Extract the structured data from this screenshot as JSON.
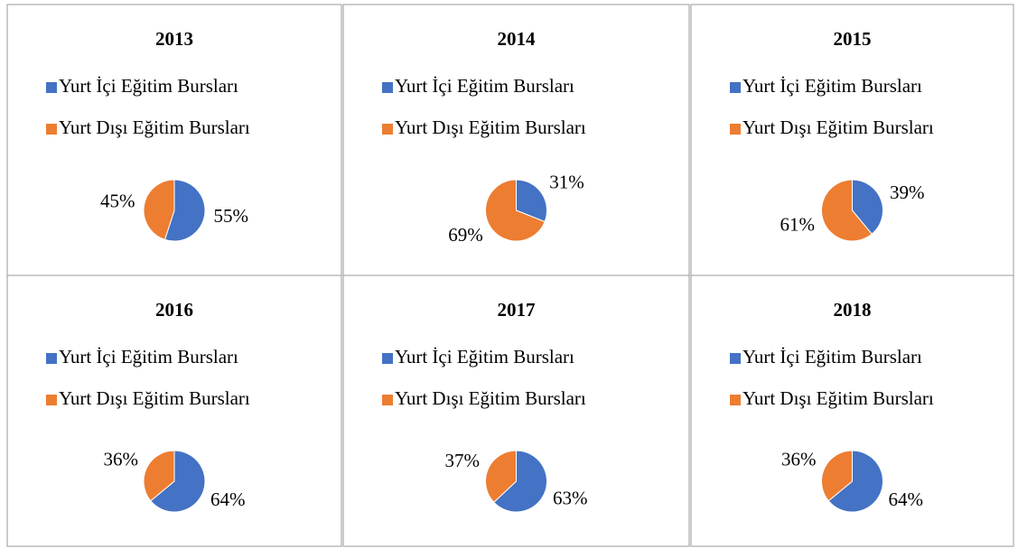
{
  "chart_data": [
    {
      "type": "pie",
      "title": "2013",
      "categories": [
        "Yurt İçi Eğitim Bursları",
        "Yurt Dışı Eğitim Bursları"
      ],
      "values": [
        55,
        45
      ],
      "value_labels": [
        "55%",
        "45%"
      ],
      "colors": [
        "#4472c4",
        "#ed7d31"
      ]
    },
    {
      "type": "pie",
      "title": "2014",
      "categories": [
        "Yurt İçi Eğitim Bursları",
        "Yurt Dışı Eğitim Bursları"
      ],
      "values": [
        31,
        69
      ],
      "value_labels": [
        "31%",
        "69%"
      ],
      "colors": [
        "#4472c4",
        "#ed7d31"
      ]
    },
    {
      "type": "pie",
      "title": "2015",
      "categories": [
        "Yurt İçi Eğitim Bursları",
        "Yurt Dışı Eğitim Bursları"
      ],
      "values": [
        39,
        61
      ],
      "value_labels": [
        "39%",
        "61%"
      ],
      "colors": [
        "#4472c4",
        "#ed7d31"
      ]
    },
    {
      "type": "pie",
      "title": "2016",
      "categories": [
        "Yurt İçi Eğitim Bursları",
        "Yurt Dışı Eğitim Bursları"
      ],
      "values": [
        64,
        36
      ],
      "value_labels": [
        "64%",
        "36%"
      ],
      "colors": [
        "#4472c4",
        "#ed7d31"
      ]
    },
    {
      "type": "pie",
      "title": "2017",
      "categories": [
        "Yurt İçi Eğitim Bursları",
        "Yurt Dışı Eğitim Bursları"
      ],
      "values": [
        63,
        37
      ],
      "value_labels": [
        "63%",
        "37%"
      ],
      "colors": [
        "#4472c4",
        "#ed7d31"
      ]
    },
    {
      "type": "pie",
      "title": "2018",
      "categories": [
        "Yurt İçi Eğitim Bursları",
        "Yurt Dışı Eğitim Bursları"
      ],
      "values": [
        64,
        36
      ],
      "value_labels": [
        "64%",
        "36%"
      ],
      "colors": [
        "#4472c4",
        "#ed7d31"
      ]
    }
  ]
}
